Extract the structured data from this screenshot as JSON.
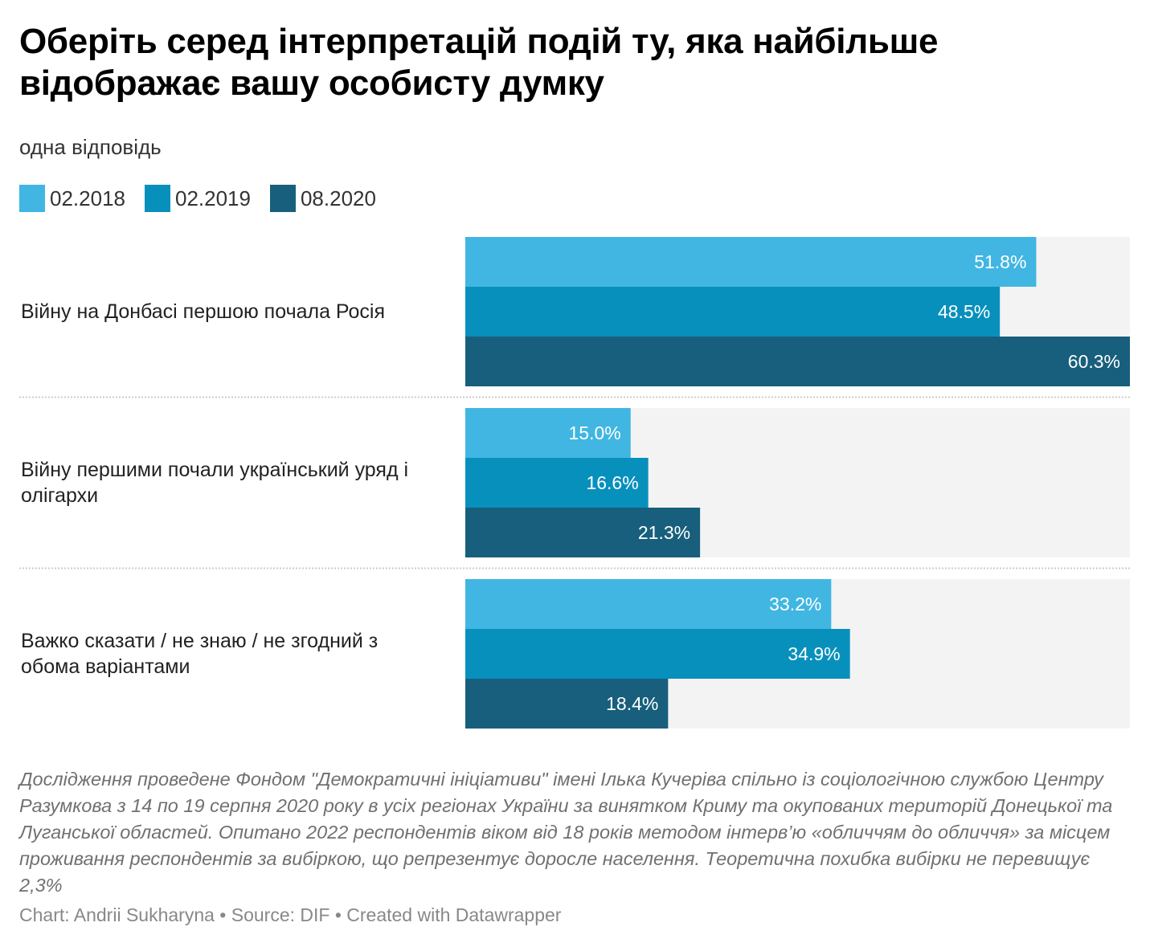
{
  "header": {
    "title": "Оберіть серед інтерпретацій подій ту, яка найбільше відображає вашу особисту думку",
    "subtitle": "одна відповідь"
  },
  "colors": {
    "series_2018": "#41b6e2",
    "series_2019": "#0890bd",
    "series_2020": "#175f7c",
    "bar_background": "#f3f3f3",
    "separator": "#cccccc"
  },
  "chart_data": {
    "type": "bar",
    "orientation": "horizontal",
    "title": "Оберіть серед інтерпретацій подій ту, яка найбільше відображає вашу особисту думку",
    "subtitle": "одна відповідь",
    "xlim": [
      0,
      60.3
    ],
    "legend_position": "top-left",
    "categories": [
      {
        "lines": [
          "Війну на Донбасі першою почала Росія"
        ]
      },
      {
        "lines": [
          "Війну першими почали український уряд і",
          "олігархи"
        ]
      },
      {
        "lines": [
          "Важко сказати / не знаю / не згодний з",
          "обома варіантами"
        ]
      }
    ],
    "series": [
      {
        "name": "02.2018",
        "values": [
          51.8,
          15.0,
          33.2
        ],
        "labels": [
          "51.8%",
          "15.0%",
          "33.2%"
        ]
      },
      {
        "name": "02.2019",
        "values": [
          48.5,
          16.6,
          34.9
        ],
        "labels": [
          "48.5%",
          "16.6%",
          "34.9%"
        ]
      },
      {
        "name": "08.2020",
        "values": [
          60.3,
          21.3,
          18.4
        ],
        "labels": [
          "60.3%",
          "21.3%",
          "18.4%"
        ]
      }
    ]
  },
  "footer": {
    "notes": "Дослідження проведене Фондом \"Демократичні ініціативи\" імені Ілька Кучеріва спільно із соціологічною службою Центру Разумкова з 14 по 19 серпня 2020 року в усіх регіонах України за винятком Криму та окупованих територій Донецької та Луганської областей. Опитано 2022 респондентів віком від 18 років методом інтерв’ю «обличчям до обличчя» за місцем проживання респондентів за вибіркою, що репрезентує доросле населення. Теоретична похибка вибірки не перевищує 2,3%",
    "byline": "Chart: Andrii Sukharyna • Source: DIF • Created with Datawrapper"
  }
}
